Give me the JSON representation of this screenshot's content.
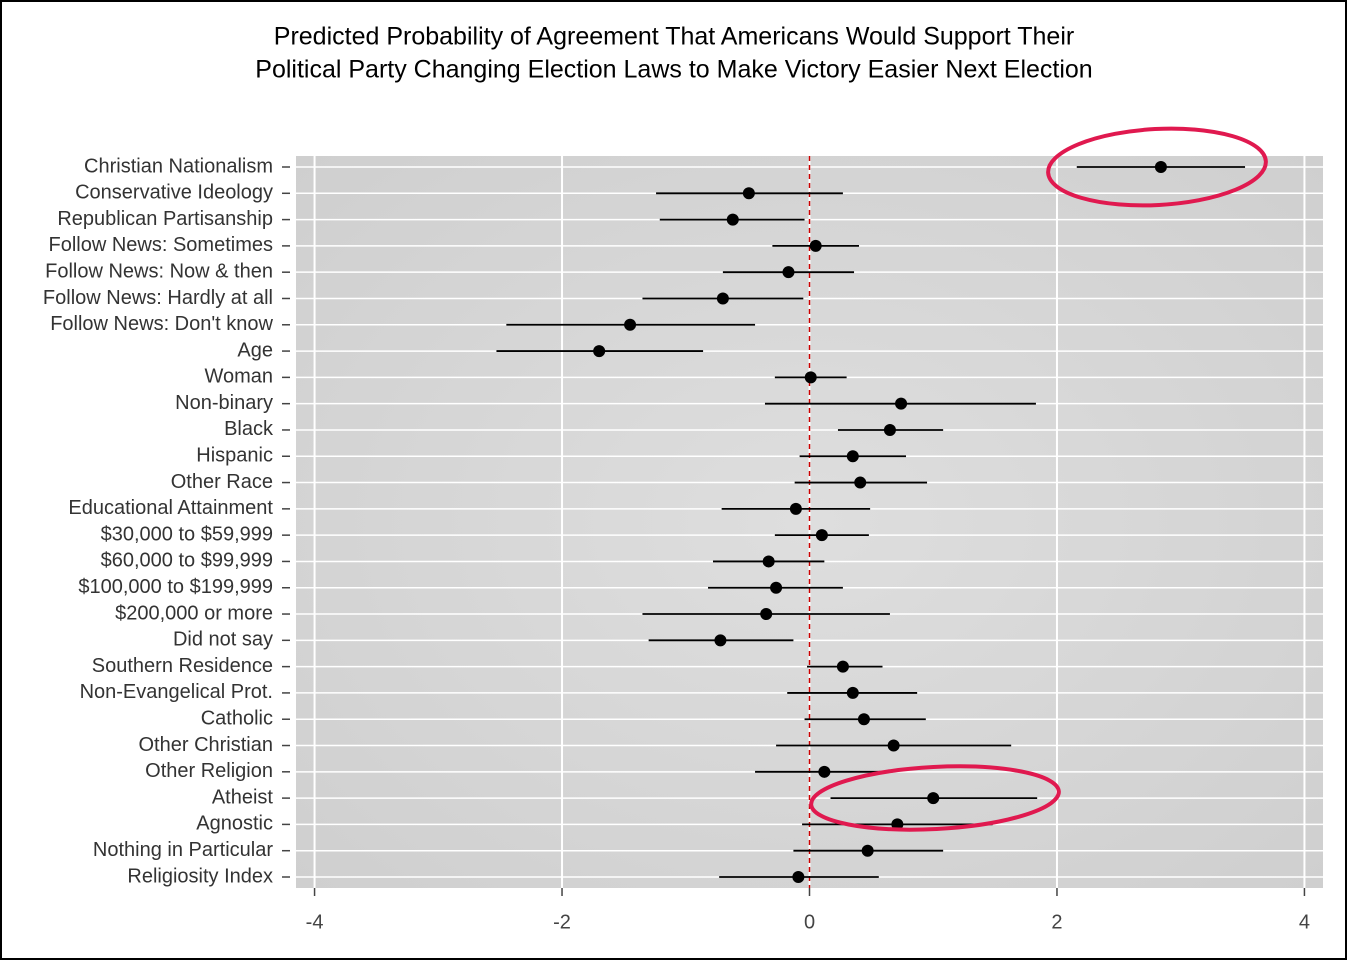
{
  "chart_data": {
    "type": "coefficient",
    "title": [
      "Predicted Probability of Agreement That Americans Would Support Their",
      "Political Party Changing Election Laws to Make Victory Easier Next Election"
    ],
    "categories": [
      "Christian Nationalism",
      "Conservative Ideology",
      "Republican Partisanship",
      "Follow News: Sometimes",
      "Follow News: Now & then",
      "Follow News: Hardly at all",
      "Follow News: Don't know",
      "Age",
      "Woman",
      "Non-binary",
      "Black",
      "Hispanic",
      "Other Race",
      "Educational Attainment",
      "$30,000 to $59,999",
      "$60,000 to $99,999",
      "$100,000 to $199,999",
      "$200,000 or more",
      "Did not say",
      "Southern Residence",
      "Non-Evangelical Prot.",
      "Catholic",
      "Other Christian",
      "Other Religion",
      "Atheist",
      "Agnostic",
      "Nothing in Particular",
      "Religiosity Index"
    ],
    "values": [
      2.84,
      -0.49,
      -0.62,
      0.05,
      -0.17,
      -0.7,
      -1.45,
      -1.7,
      0.01,
      0.74,
      0.65,
      0.35,
      0.41,
      -0.11,
      0.1,
      -0.33,
      -0.27,
      -0.35,
      -0.72,
      0.27,
      0.35,
      0.44,
      0.68,
      0.12,
      1.0,
      0.71,
      0.47,
      -0.09
    ],
    "ci_low": [
      2.16,
      -1.24,
      -1.21,
      -0.3,
      -0.7,
      -1.35,
      -2.45,
      -2.53,
      -0.28,
      -0.36,
      0.23,
      -0.08,
      -0.12,
      -0.71,
      -0.28,
      -0.78,
      -0.82,
      -1.35,
      -1.3,
      -0.02,
      -0.18,
      -0.04,
      -0.27,
      -0.44,
      0.17,
      -0.06,
      -0.13,
      -0.73
    ],
    "ci_high": [
      3.52,
      0.27,
      -0.04,
      0.4,
      0.36,
      -0.05,
      -0.44,
      -0.86,
      0.3,
      1.83,
      1.08,
      0.78,
      0.95,
      0.49,
      0.48,
      0.12,
      0.27,
      0.65,
      -0.13,
      0.59,
      0.87,
      0.94,
      1.63,
      0.67,
      1.84,
      1.48,
      1.08,
      0.56
    ],
    "color": "#000000",
    "xlim": [
      -4.15,
      4.15
    ],
    "xticks": [
      -4,
      -2,
      0,
      2,
      4
    ],
    "grid": true,
    "reference_line": {
      "value": 0,
      "color": "#cc0000"
    }
  }
}
